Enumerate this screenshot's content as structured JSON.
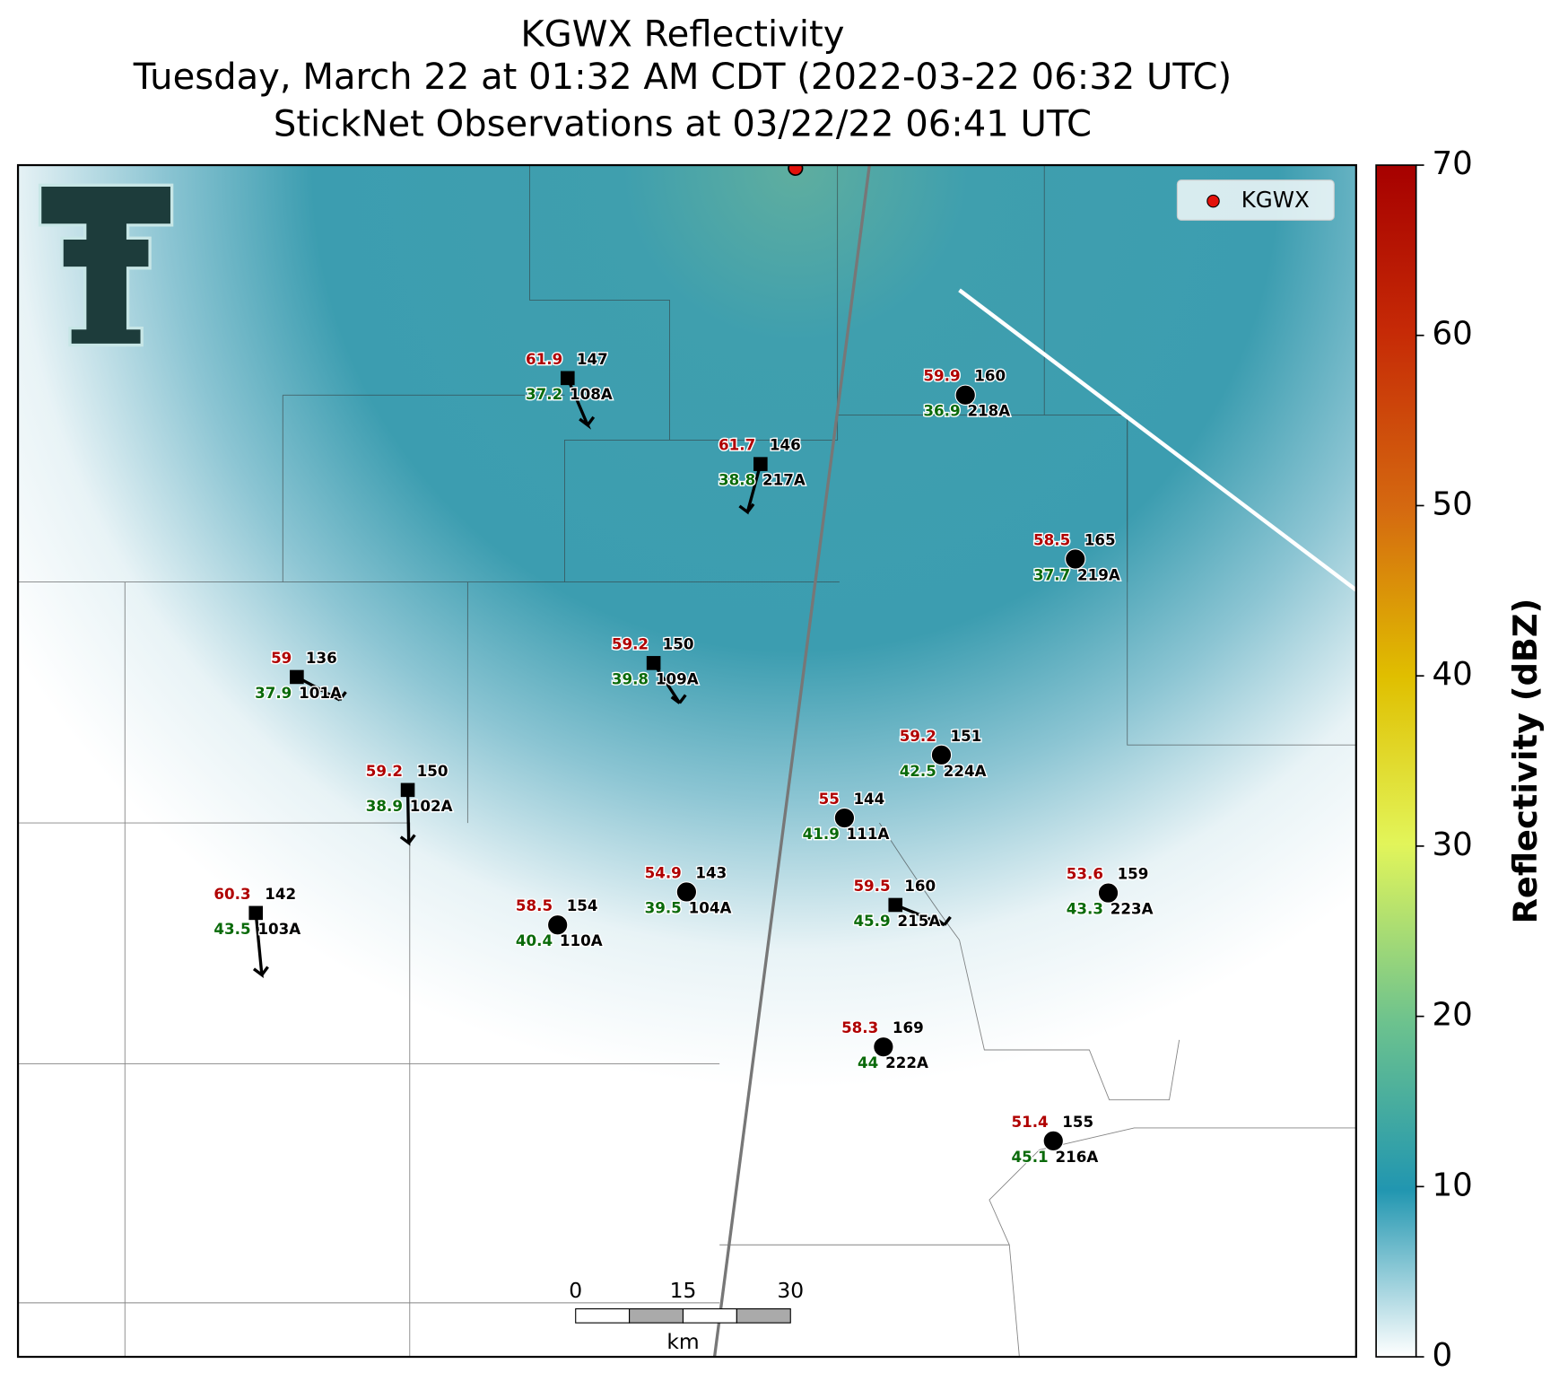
{
  "title": [
    "KGWX Reflectivity",
    "Tuesday, March 22 at 01:32 AM CDT (2022-03-22 06:32 UTC)",
    "StickNet Observations at 03/22/22 06:41 UTC"
  ],
  "legend": {
    "label": "KGWX",
    "color": "#e3120b"
  },
  "colorbar": {
    "label": "Reflectivity (dBZ)",
    "lim": [
      0,
      70
    ],
    "ticks": [
      0,
      10,
      20,
      30,
      40,
      50,
      60,
      70
    ]
  },
  "scale_bar": {
    "ticks": [
      0,
      15,
      30
    ],
    "unit": "km"
  },
  "stations": [
    {
      "id": "108A",
      "temperature": 61.9,
      "dewpoint": 37.2,
      "value": 147
    },
    {
      "id": "217A",
      "temperature": 61.7,
      "dewpoint": 38.8,
      "value": 146
    },
    {
      "id": "218A",
      "temperature": 59.9,
      "dewpoint": 36.9,
      "value": 160
    },
    {
      "id": "219A",
      "temperature": 58.5,
      "dewpoint": 37.7,
      "value": 165
    },
    {
      "id": "101A",
      "temperature": 59.0,
      "dewpoint": 37.9,
      "value": 136
    },
    {
      "id": "109A",
      "temperature": 59.2,
      "dewpoint": 39.8,
      "value": 150
    },
    {
      "id": "224A",
      "temperature": 59.2,
      "dewpoint": 42.5,
      "value": 151
    },
    {
      "id": "102A",
      "temperature": 59.2,
      "dewpoint": 38.9,
      "value": 150
    },
    {
      "id": "111A",
      "temperature": 55.0,
      "dewpoint": 41.9,
      "value": 144
    },
    {
      "id": "103A",
      "temperature": 60.3,
      "dewpoint": 43.5,
      "value": 142
    },
    {
      "id": "110A",
      "temperature": 58.5,
      "dewpoint": 40.4,
      "value": 154
    },
    {
      "id": "104A",
      "temperature": 54.9,
      "dewpoint": 39.5,
      "value": 143
    },
    {
      "id": "215A",
      "temperature": 59.5,
      "dewpoint": 45.9,
      "value": 160
    },
    {
      "id": "223A",
      "temperature": 53.6,
      "dewpoint": 43.3,
      "value": 159
    },
    {
      "id": "222A",
      "temperature": 58.3,
      "dewpoint": 44.0,
      "value": 169
    },
    {
      "id": "216A",
      "temperature": 51.4,
      "dewpoint": 45.1,
      "value": 155
    }
  ]
}
